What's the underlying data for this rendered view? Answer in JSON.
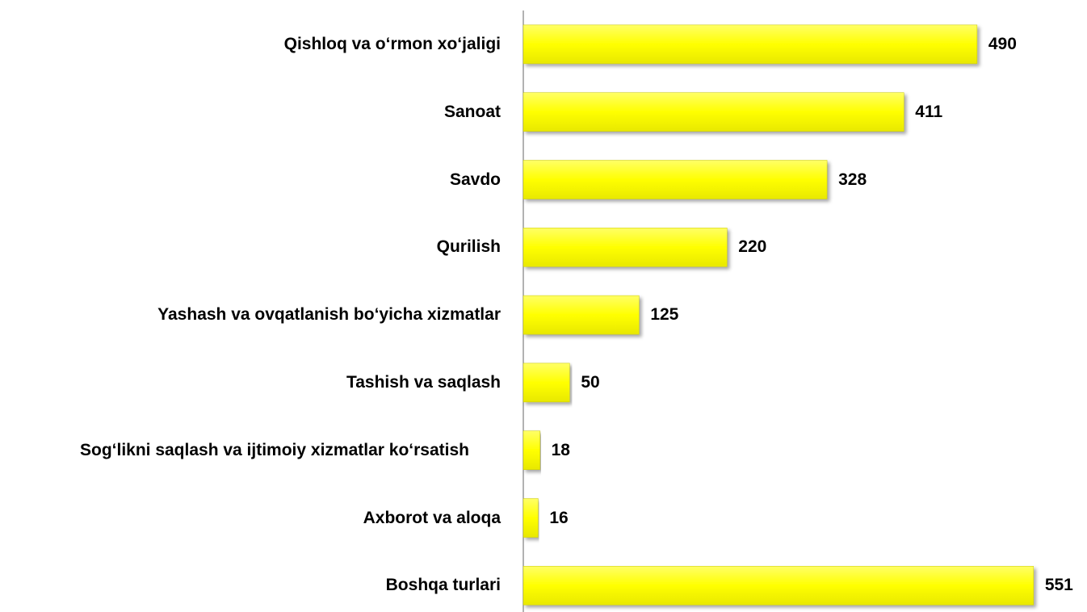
{
  "chart_data": {
    "type": "bar",
    "orientation": "horizontal",
    "categories": [
      "Qishloq va o‘rmon xo‘jaligi",
      "Sanoat",
      "Savdo",
      "Qurilish",
      "Yashash va ovqatlanish bo‘yicha xizmatlar",
      "Tashish va saqlash",
      "Sog‘likni saqlash va ijtimoiy xizmatlar ko‘rsatish",
      "Axborot va aloqa",
      "Boshqa turlari"
    ],
    "values": [
      490,
      411,
      328,
      220,
      125,
      50,
      18,
      16,
      551
    ],
    "color": "#ffff00",
    "xlim": [
      0,
      600
    ]
  }
}
